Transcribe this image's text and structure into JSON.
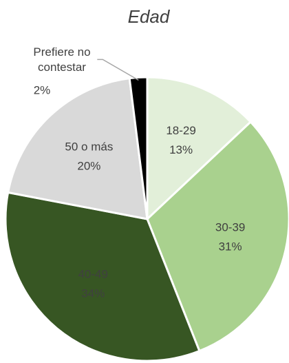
{
  "chart_data": {
    "type": "pie",
    "title": "Edad",
    "categories": [
      "18-29",
      "30-39",
      "40-49",
      "50 o más",
      "Prefiere no contestar"
    ],
    "values": [
      13,
      31,
      34,
      20,
      2
    ],
    "value_labels": [
      "13%",
      "31%",
      "34%",
      "20%",
      "2%"
    ],
    "colors": [
      "#e2efd9",
      "#a9d18e",
      "#375623",
      "#d9d9d9",
      "#000000"
    ]
  }
}
